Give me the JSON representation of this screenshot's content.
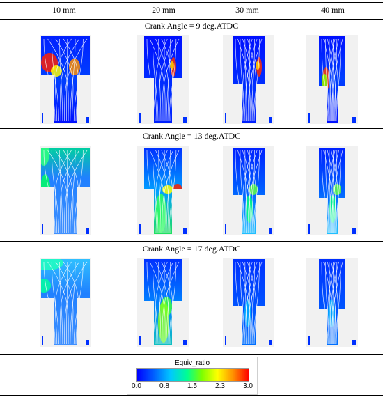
{
  "columns": [
    "10 mm",
    "20 mm",
    "30 mm",
    "40 mm"
  ],
  "sections": [
    {
      "title": "Crank Angle = 9 deg.ATDC"
    },
    {
      "title": "Crank Angle = 13 deg.ATDC"
    },
    {
      "title": "Crank Angle = 17 deg.ATDC"
    }
  ],
  "colorbar": {
    "title": "Equiv_ratio",
    "ticks": [
      "0.0",
      "0.8",
      "1.5",
      "2.3",
      "3.0"
    ],
    "range": [
      0.0,
      3.0
    ],
    "colors": [
      "#0000ff",
      "#00c8ff",
      "#00ff90",
      "#ffff00",
      "#ff0000"
    ]
  }
}
